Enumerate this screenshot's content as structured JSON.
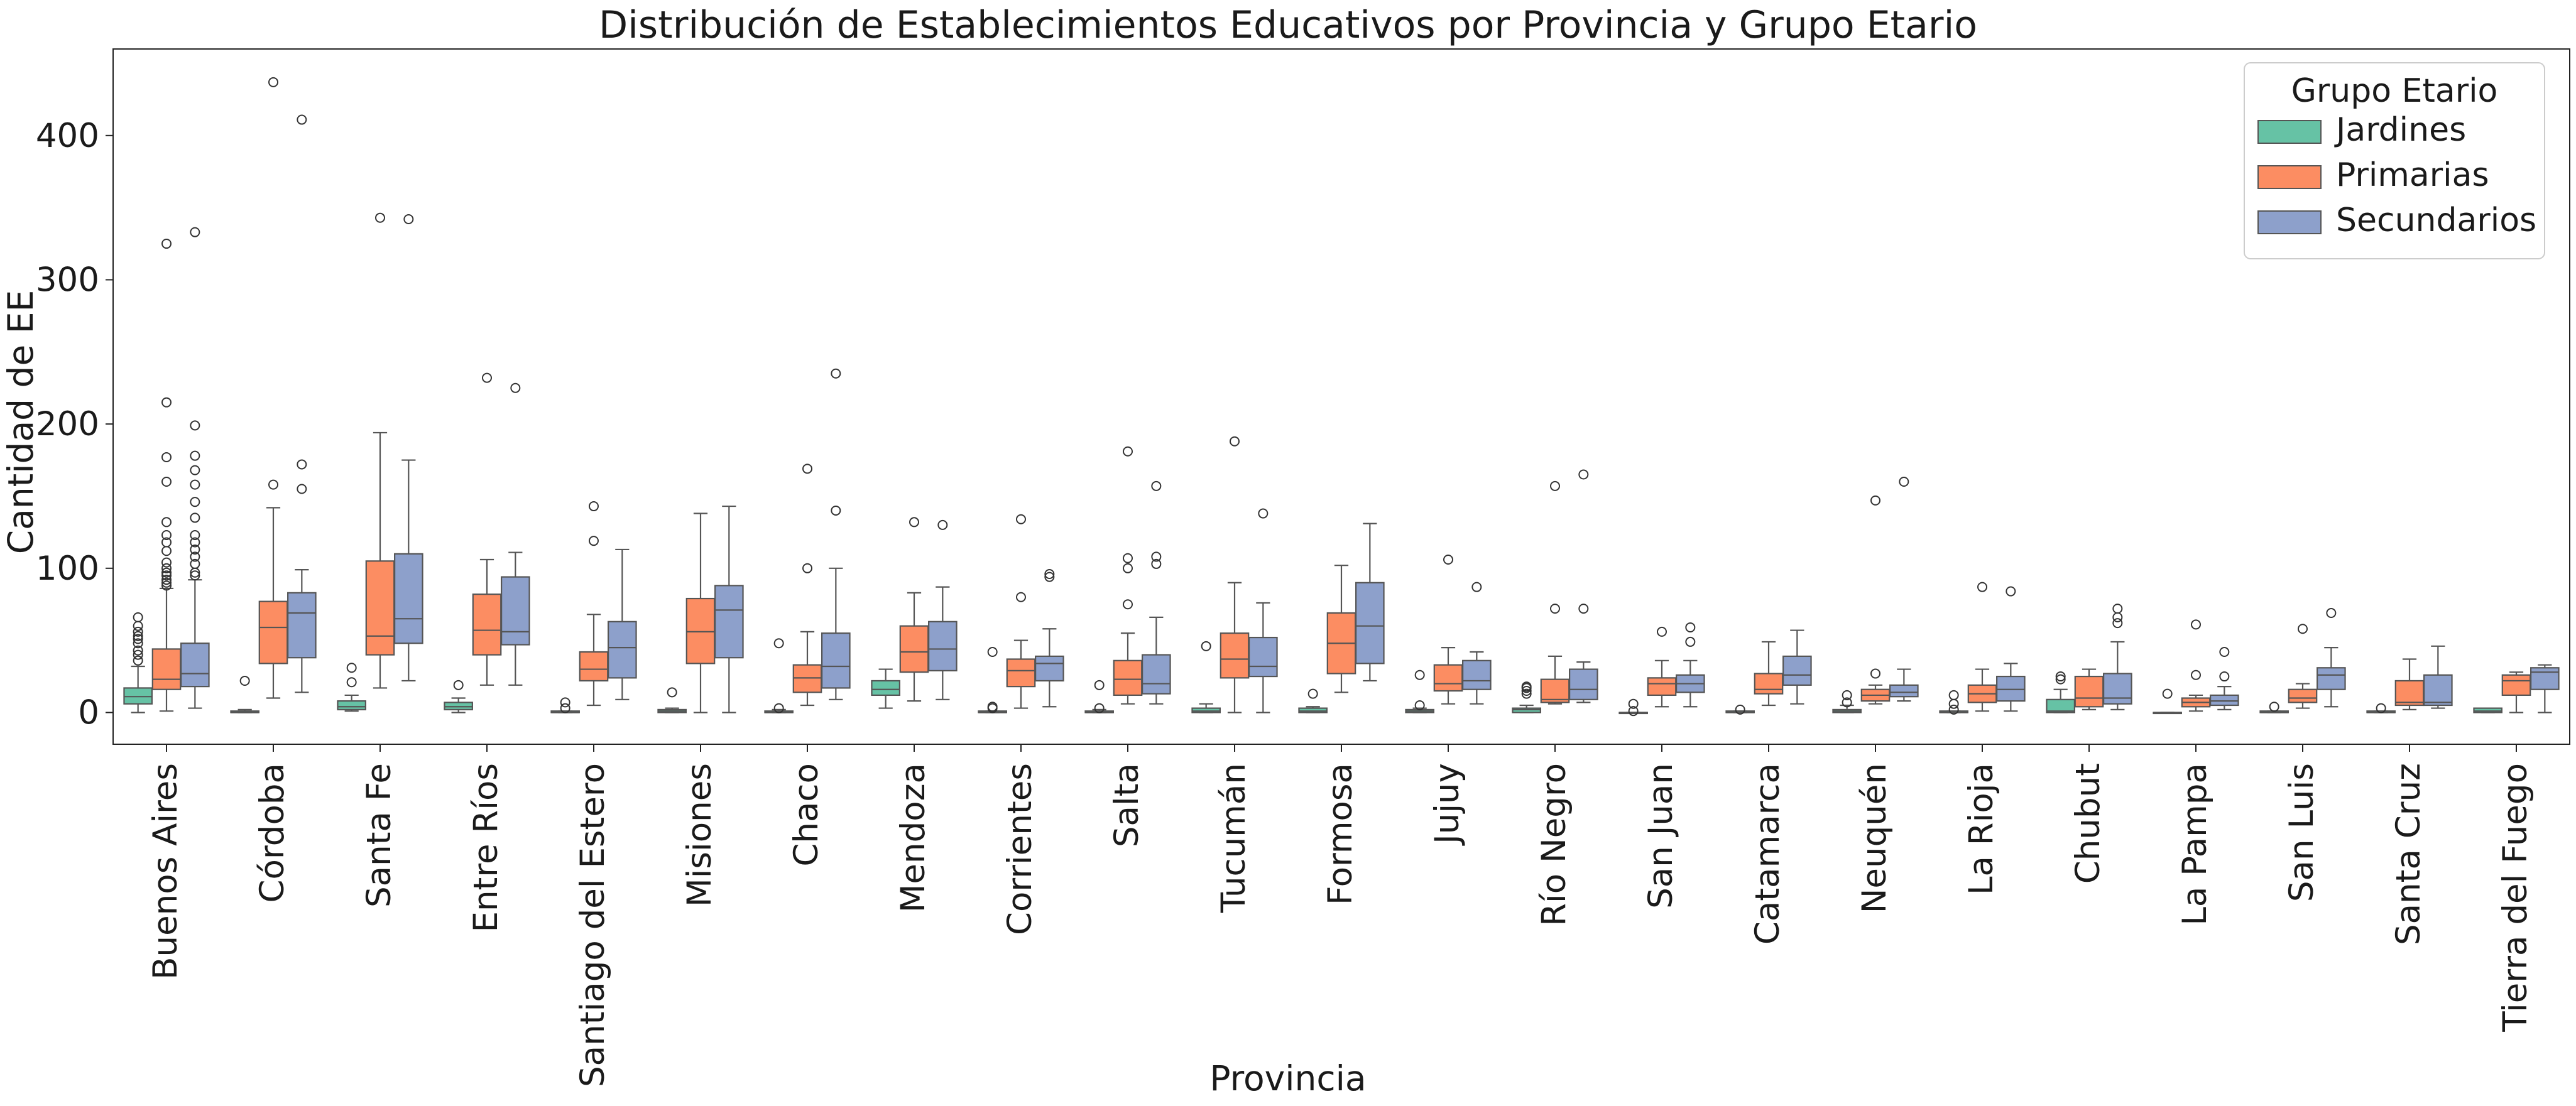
{
  "chart_data": {
    "type": "box",
    "title": "Distribución de Establecimientos Educativos por Provincia y Grupo Etario",
    "xlabel": "Provincia",
    "ylabel": "Cantidad de EE",
    "ylim": [
      -22,
      460
    ],
    "yticks": [
      0,
      100,
      200,
      300,
      400
    ],
    "grid": false,
    "legend": {
      "title": "Grupo Etario",
      "position": "top-right"
    },
    "series": [
      {
        "name": "Jardines",
        "color": "#66c2a5"
      },
      {
        "name": "Primarias",
        "color": "#fc8d62"
      },
      {
        "name": "Secundarios",
        "color": "#8da0cb"
      }
    ],
    "categories": [
      "Buenos Aires",
      "Córdoba",
      "Santa Fe",
      "Entre Ríos",
      "Santiago del Estero",
      "Misiones",
      "Chaco",
      "Mendoza",
      "Corrientes",
      "Salta",
      "Tucumán",
      "Formosa",
      "Jujuy",
      "Río Negro",
      "San Juan",
      "Catamarca",
      "Neuquén",
      "La Rioja",
      "Chubut",
      "La Pampa",
      "San Luis",
      "Santa Cruz",
      "Tierra del Fuego"
    ],
    "boxes": [
      [
        {
          "whislo": 0,
          "q1": 6,
          "med": 11,
          "q3": 17,
          "whishi": 32,
          "fliers": [
            36,
            40,
            43,
            48,
            51,
            53,
            56,
            60,
            66
          ]
        },
        {
          "whislo": 1,
          "q1": 16,
          "med": 23,
          "q3": 44,
          "whishi": 86,
          "fliers": [
            88,
            90,
            92,
            95,
            97,
            100,
            104,
            112,
            118,
            123,
            132,
            160,
            177,
            215,
            325
          ]
        },
        {
          "whislo": 3,
          "q1": 18,
          "med": 27,
          "q3": 48,
          "whishi": 92,
          "fliers": [
            95,
            97,
            103,
            108,
            113,
            118,
            123,
            135,
            146,
            158,
            168,
            178,
            199,
            333
          ]
        }
      ],
      [
        {
          "whislo": 0,
          "q1": 0,
          "med": 0,
          "q3": 1,
          "whishi": 2,
          "fliers": [
            22
          ]
        },
        {
          "whislo": 10,
          "q1": 34,
          "med": 59,
          "q3": 77,
          "whishi": 142,
          "fliers": [
            158,
            437
          ]
        },
        {
          "whislo": 14,
          "q1": 38,
          "med": 69,
          "q3": 83,
          "whishi": 99,
          "fliers": [
            155,
            172,
            411
          ]
        }
      ],
      [
        {
          "whislo": 1,
          "q1": 2,
          "med": 4,
          "q3": 8,
          "whishi": 12,
          "fliers": [
            21,
            31
          ]
        },
        {
          "whislo": 17,
          "q1": 40,
          "med": 53,
          "q3": 105,
          "whishi": 194,
          "fliers": [
            343
          ]
        },
        {
          "whislo": 22,
          "q1": 48,
          "med": 65,
          "q3": 110,
          "whishi": 175,
          "fliers": [
            342
          ]
        }
      ],
      [
        {
          "whislo": 0,
          "q1": 2,
          "med": 4,
          "q3": 7,
          "whishi": 10,
          "fliers": [
            19
          ]
        },
        {
          "whislo": 19,
          "q1": 40,
          "med": 57,
          "q3": 82,
          "whishi": 106,
          "fliers": [
            232
          ]
        },
        {
          "whislo": 19,
          "q1": 47,
          "med": 56,
          "q3": 94,
          "whishi": 111,
          "fliers": [
            225
          ]
        }
      ],
      [
        {
          "whislo": 0,
          "q1": 0,
          "med": 0,
          "q3": 1,
          "whishi": 1,
          "fliers": [
            3,
            7
          ]
        },
        {
          "whislo": 5,
          "q1": 22,
          "med": 30,
          "q3": 42,
          "whishi": 68,
          "fliers": [
            119,
            143
          ]
        },
        {
          "whislo": 9,
          "q1": 24,
          "med": 45,
          "q3": 63,
          "whishi": 113,
          "fliers": []
        }
      ],
      [
        {
          "whislo": 0,
          "q1": 0,
          "med": 1,
          "q3": 2,
          "whishi": 3,
          "fliers": [
            14
          ]
        },
        {
          "whislo": 0,
          "q1": 34,
          "med": 56,
          "q3": 79,
          "whishi": 138,
          "fliers": []
        },
        {
          "whislo": 0,
          "q1": 38,
          "med": 71,
          "q3": 88,
          "whishi": 143,
          "fliers": []
        }
      ],
      [
        {
          "whislo": 0,
          "q1": 0,
          "med": 0,
          "q3": 1,
          "whishi": 2,
          "fliers": [
            3,
            48
          ]
        },
        {
          "whislo": 5,
          "q1": 14,
          "med": 24,
          "q3": 33,
          "whishi": 56,
          "fliers": [
            100,
            169
          ]
        },
        {
          "whislo": 9,
          "q1": 17,
          "med": 32,
          "q3": 55,
          "whishi": 100,
          "fliers": [
            140,
            235
          ]
        }
      ],
      [
        {
          "whislo": 3,
          "q1": 12,
          "med": 16,
          "q3": 22,
          "whishi": 30,
          "fliers": []
        },
        {
          "whislo": 8,
          "q1": 28,
          "med": 42,
          "q3": 60,
          "whishi": 83,
          "fliers": [
            132
          ]
        },
        {
          "whislo": 9,
          "q1": 29,
          "med": 44,
          "q3": 63,
          "whishi": 87,
          "fliers": [
            130
          ]
        }
      ],
      [
        {
          "whislo": 0,
          "q1": 0,
          "med": 0,
          "q3": 1,
          "whishi": 1,
          "fliers": [
            3,
            4,
            42
          ]
        },
        {
          "whislo": 3,
          "q1": 18,
          "med": 29,
          "q3": 37,
          "whishi": 50,
          "fliers": [
            80,
            134
          ]
        },
        {
          "whislo": 4,
          "q1": 22,
          "med": 34,
          "q3": 39,
          "whishi": 58,
          "fliers": [
            94,
            96
          ]
        }
      ],
      [
        {
          "whislo": 0,
          "q1": 0,
          "med": 0,
          "q3": 1,
          "whishi": 2,
          "fliers": [
            3,
            19
          ]
        },
        {
          "whislo": 6,
          "q1": 12,
          "med": 23,
          "q3": 36,
          "whishi": 55,
          "fliers": [
            75,
            100,
            107,
            181
          ]
        },
        {
          "whislo": 6,
          "q1": 13,
          "med": 20,
          "q3": 40,
          "whishi": 66,
          "fliers": [
            103,
            108,
            157
          ]
        }
      ],
      [
        {
          "whislo": 0,
          "q1": 0,
          "med": 1,
          "q3": 3,
          "whishi": 6,
          "fliers": [
            46
          ]
        },
        {
          "whislo": 0,
          "q1": 24,
          "med": 37,
          "q3": 55,
          "whishi": 90,
          "fliers": [
            188
          ]
        },
        {
          "whislo": 0,
          "q1": 25,
          "med": 32,
          "q3": 52,
          "whishi": 76,
          "fliers": [
            138
          ]
        }
      ],
      [
        {
          "whislo": 0,
          "q1": 0,
          "med": 1,
          "q3": 3,
          "whishi": 4,
          "fliers": [
            13
          ]
        },
        {
          "whislo": 14,
          "q1": 27,
          "med": 48,
          "q3": 69,
          "whishi": 102,
          "fliers": []
        },
        {
          "whislo": 22,
          "q1": 34,
          "med": 60,
          "q3": 90,
          "whishi": 131,
          "fliers": []
        }
      ],
      [
        {
          "whislo": 0,
          "q1": 0,
          "med": 1,
          "q3": 2,
          "whishi": 3,
          "fliers": [
            5,
            26
          ]
        },
        {
          "whislo": 6,
          "q1": 15,
          "med": 20,
          "q3": 33,
          "whishi": 45,
          "fliers": [
            106
          ]
        },
        {
          "whislo": 6,
          "q1": 16,
          "med": 22,
          "q3": 36,
          "whishi": 42,
          "fliers": [
            87
          ]
        }
      ],
      [
        {
          "whislo": 0,
          "q1": 0,
          "med": 2,
          "q3": 3,
          "whishi": 5,
          "fliers": [
            13,
            15,
            17,
            18
          ]
        },
        {
          "whislo": 6,
          "q1": 7,
          "med": 9,
          "q3": 23,
          "whishi": 39,
          "fliers": [
            72,
            157
          ]
        },
        {
          "whislo": 7,
          "q1": 9,
          "med": 16,
          "q3": 30,
          "whishi": 35,
          "fliers": [
            72,
            165
          ]
        }
      ],
      [
        {
          "whislo": 0,
          "q1": 0,
          "med": 0,
          "q3": 0,
          "whishi": 0,
          "fliers": [
            1,
            6
          ]
        },
        {
          "whislo": 4,
          "q1": 12,
          "med": 20,
          "q3": 24,
          "whishi": 36,
          "fliers": [
            56
          ]
        },
        {
          "whislo": 4,
          "q1": 14,
          "med": 20,
          "q3": 26,
          "whishi": 36,
          "fliers": [
            49,
            59
          ]
        }
      ],
      [
        {
          "whislo": 0,
          "q1": 0,
          "med": 0,
          "q3": 1,
          "whishi": 1,
          "fliers": [
            2
          ]
        },
        {
          "whislo": 5,
          "q1": 13,
          "med": 16,
          "q3": 27,
          "whishi": 49,
          "fliers": []
        },
        {
          "whislo": 6,
          "q1": 19,
          "med": 26,
          "q3": 39,
          "whishi": 57,
          "fliers": []
        }
      ],
      [
        {
          "whislo": 0,
          "q1": 0,
          "med": 1,
          "q3": 2,
          "whishi": 5,
          "fliers": [
            7,
            12
          ]
        },
        {
          "whislo": 6,
          "q1": 8,
          "med": 12,
          "q3": 16,
          "whishi": 19,
          "fliers": [
            27,
            147
          ]
        },
        {
          "whislo": 8,
          "q1": 11,
          "med": 14,
          "q3": 19,
          "whishi": 30,
          "fliers": [
            160
          ]
        }
      ],
      [
        {
          "whislo": 0,
          "q1": 0,
          "med": 0,
          "q3": 1,
          "whishi": 1,
          "fliers": [
            2,
            6,
            12
          ]
        },
        {
          "whislo": 1,
          "q1": 7,
          "med": 13,
          "q3": 19,
          "whishi": 30,
          "fliers": [
            87
          ]
        },
        {
          "whislo": 1,
          "q1": 8,
          "med": 16,
          "q3": 25,
          "whishi": 34,
          "fliers": [
            84
          ]
        }
      ],
      [
        {
          "whislo": 0,
          "q1": 0,
          "med": 1,
          "q3": 9,
          "whishi": 16,
          "fliers": [
            23,
            25
          ]
        },
        {
          "whislo": 2,
          "q1": 4,
          "med": 10,
          "q3": 25,
          "whishi": 30,
          "fliers": []
        },
        {
          "whislo": 2,
          "q1": 6,
          "med": 10,
          "q3": 27,
          "whishi": 49,
          "fliers": [
            62,
            66,
            72
          ]
        }
      ],
      [
        {
          "whislo": 0,
          "q1": 0,
          "med": 0,
          "q3": 0,
          "whishi": 0,
          "fliers": [
            13
          ]
        },
        {
          "whislo": 1,
          "q1": 4,
          "med": 7,
          "q3": 10,
          "whishi": 12,
          "fliers": [
            26,
            61
          ]
        },
        {
          "whislo": 2,
          "q1": 5,
          "med": 8,
          "q3": 12,
          "whishi": 18,
          "fliers": [
            25,
            42
          ]
        }
      ],
      [
        {
          "whislo": 0,
          "q1": 0,
          "med": 0,
          "q3": 1,
          "whishi": 1,
          "fliers": [
            4
          ]
        },
        {
          "whislo": 3,
          "q1": 7,
          "med": 10,
          "q3": 16,
          "whishi": 20,
          "fliers": [
            58
          ]
        },
        {
          "whislo": 4,
          "q1": 16,
          "med": 26,
          "q3": 31,
          "whishi": 45,
          "fliers": [
            69
          ]
        }
      ],
      [
        {
          "whislo": 0,
          "q1": 0,
          "med": 0,
          "q3": 1,
          "whishi": 1,
          "fliers": [
            3
          ]
        },
        {
          "whislo": 2,
          "q1": 5,
          "med": 7,
          "q3": 22,
          "whishi": 37,
          "fliers": []
        },
        {
          "whislo": 3,
          "q1": 5,
          "med": 7,
          "q3": 26,
          "whishi": 46,
          "fliers": []
        }
      ],
      [
        {
          "whislo": 0,
          "q1": 0,
          "med": 1,
          "q3": 3,
          "whishi": 3,
          "fliers": []
        },
        {
          "whislo": 0,
          "q1": 12,
          "med": 22,
          "q3": 26,
          "whishi": 28,
          "fliers": []
        },
        {
          "whislo": 0,
          "q1": 16,
          "med": 28,
          "q3": 31,
          "whishi": 33,
          "fliers": []
        }
      ]
    ]
  }
}
